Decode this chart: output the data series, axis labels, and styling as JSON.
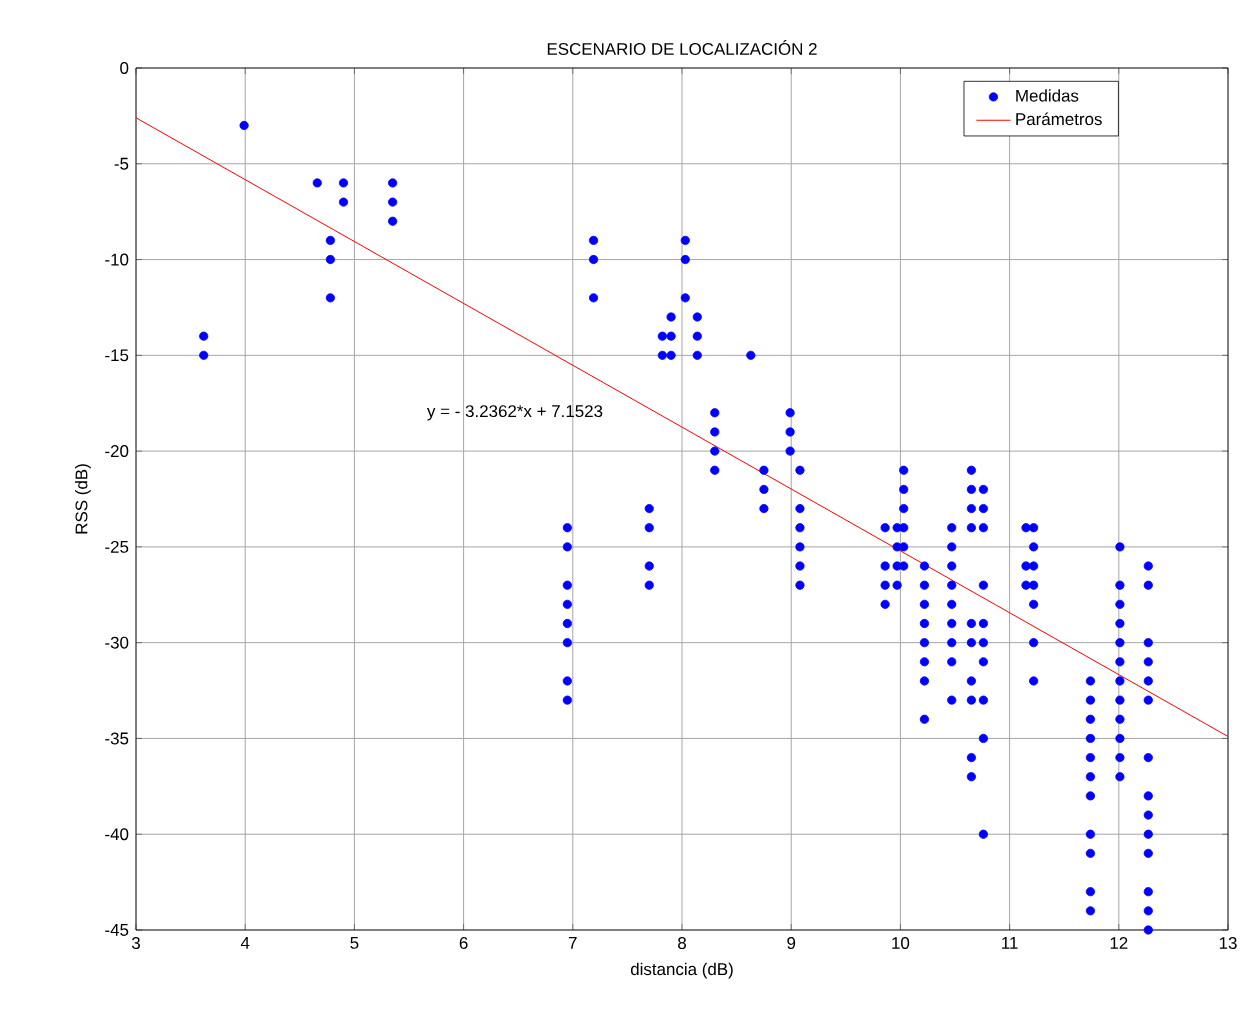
{
  "chart_data": {
    "type": "scatter",
    "title": "ESCENARIO DE LOCALIZACIÓN 2",
    "xlabel": "distancia (dB)",
    "ylabel": "RSS (dB)",
    "xlim": [
      3,
      13
    ],
    "ylim": [
      -45,
      0
    ],
    "xticks": [
      3,
      4,
      5,
      6,
      7,
      8,
      9,
      10,
      11,
      12,
      13
    ],
    "yticks": [
      -45,
      -40,
      -35,
      -30,
      -25,
      -20,
      -15,
      -10,
      -5,
      0
    ],
    "grid": true,
    "legend": "top right",
    "annotations": [
      "y = - 3.2362*x + 7.1523"
    ],
    "series": [
      {
        "name": "Medidas",
        "marker": "circle",
        "color": "#0000ff",
        "x": [
          3.62,
          3.62,
          3.99,
          4.66,
          4.78,
          4.78,
          4.78,
          4.9,
          4.9,
          5.35,
          5.35,
          5.35,
          6.95,
          6.95,
          6.95,
          6.95,
          6.95,
          6.95,
          6.95,
          6.95,
          7.19,
          7.19,
          7.19,
          7.7,
          7.7,
          7.7,
          7.7,
          7.82,
          7.82,
          7.9,
          7.9,
          7.9,
          8.03,
          8.03,
          8.03,
          8.14,
          8.14,
          8.14,
          8.3,
          8.3,
          8.3,
          8.3,
          8.63,
          8.75,
          8.75,
          8.75,
          8.99,
          8.99,
          8.99,
          9.08,
          9.08,
          9.08,
          9.08,
          9.08,
          9.08,
          9.86,
          9.86,
          9.86,
          9.86,
          9.97,
          9.97,
          9.97,
          9.97,
          10.03,
          10.03,
          10.03,
          10.03,
          10.03,
          10.03,
          10.22,
          10.22,
          10.22,
          10.22,
          10.22,
          10.22,
          10.22,
          10.22,
          10.47,
          10.47,
          10.47,
          10.47,
          10.47,
          10.47,
          10.47,
          10.47,
          10.47,
          10.65,
          10.65,
          10.65,
          10.65,
          10.65,
          10.65,
          10.65,
          10.65,
          10.65,
          10.65,
          10.76,
          10.76,
          10.76,
          10.76,
          10.76,
          10.76,
          10.76,
          10.76,
          10.76,
          10.76,
          11.15,
          11.15,
          11.15,
          11.22,
          11.22,
          11.22,
          11.22,
          11.22,
          11.22,
          11.22,
          11.74,
          11.74,
          11.74,
          11.74,
          11.74,
          11.74,
          11.74,
          11.74,
          11.74,
          11.74,
          11.74,
          12.01,
          12.01,
          12.01,
          12.01,
          12.01,
          12.01,
          12.01,
          12.01,
          12.01,
          12.01,
          12.01,
          12.01,
          12.27,
          12.27,
          12.27,
          12.27,
          12.27,
          12.27,
          12.27,
          12.27,
          12.27,
          12.27,
          12.27,
          12.27,
          12.27,
          12.27
        ],
        "values": [
          -14,
          -15,
          -3,
          -6,
          -9,
          -10,
          -12,
          -6,
          -7,
          -6,
          -7,
          -8,
          -24,
          -25,
          -27,
          -28,
          -29,
          -30,
          -32,
          -33,
          -9,
          -10,
          -12,
          -23,
          -24,
          -26,
          -27,
          -14,
          -15,
          -13,
          -14,
          -15,
          -9,
          -10,
          -12,
          -13,
          -14,
          -15,
          -18,
          -19,
          -20,
          -21,
          -15,
          -21,
          -22,
          -23,
          -18,
          -19,
          -20,
          -21,
          -23,
          -24,
          -25,
          -26,
          -27,
          -24,
          -26,
          -27,
          -28,
          -24,
          -25,
          -26,
          -27,
          -21,
          -22,
          -23,
          -24,
          -25,
          -26,
          -26,
          -27,
          -28,
          -29,
          -30,
          -31,
          -32,
          -34,
          -24,
          -25,
          -26,
          -27,
          -28,
          -29,
          -30,
          -31,
          -33,
          -21,
          -22,
          -23,
          -24,
          -29,
          -30,
          -32,
          -33,
          -36,
          -37,
          -22,
          -23,
          -24,
          -27,
          -29,
          -30,
          -31,
          -33,
          -35,
          -40,
          -24,
          -26,
          -27,
          -24,
          -25,
          -26,
          -27,
          -28,
          -30,
          -32,
          -32,
          -33,
          -34,
          -35,
          -36,
          -37,
          -38,
          -40,
          -41,
          -43,
          -44,
          -25,
          -27,
          -28,
          -29,
          -30,
          -31,
          -32,
          -33,
          -34,
          -35,
          -36,
          -37,
          -26,
          -27,
          -30,
          -31,
          -32,
          -33,
          -36,
          -38,
          -39,
          -40,
          -41,
          -43,
          -44,
          -45
        ]
      },
      {
        "name": "Parámetros",
        "type": "line",
        "marker": "none",
        "line_style": "solid",
        "color": "#ff0000",
        "x": [
          3,
          13
        ],
        "values": [
          -2.6,
          -34.9
        ]
      }
    ]
  }
}
